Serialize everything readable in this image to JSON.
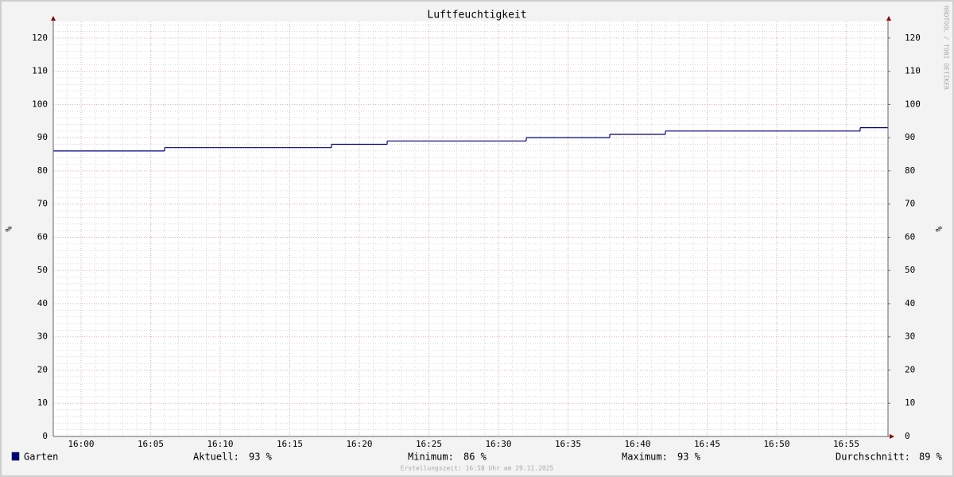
{
  "chart_data": {
    "type": "step",
    "title": "Luftfeuchtigkeit",
    "ylabel": "%",
    "y2label": "%",
    "watermark": "RRDTOOL / TOBI OETIKER",
    "x": [
      "15:58",
      "16:06",
      "16:18",
      "16:22",
      "16:32",
      "16:38",
      "16:42",
      "16:56"
    ],
    "series": [
      {
        "name": "Garten",
        "color": "#000080",
        "values": [
          86,
          87,
          88,
          89,
          90,
          91,
          92,
          93
        ]
      }
    ],
    "xlim": [
      "15:58",
      "16:58"
    ],
    "xticks": [
      "16:00",
      "16:05",
      "16:10",
      "16:15",
      "16:20",
      "16:25",
      "16:30",
      "16:35",
      "16:40",
      "16:45",
      "16:50",
      "16:55"
    ],
    "x_minor_step": 1,
    "ylim": [
      0,
      125
    ],
    "yticks": [
      0,
      10,
      20,
      30,
      40,
      50,
      60,
      70,
      80,
      90,
      100,
      110,
      120
    ],
    "y_minor_step": 2,
    "y2lim": [
      0,
      125
    ],
    "y2ticks": [
      0,
      10,
      20,
      30,
      40,
      50,
      60,
      70,
      80,
      90,
      100,
      110,
      120
    ],
    "grid": true,
    "stats": [
      {
        "label": "Aktuell:",
        "text": "93 %"
      },
      {
        "label": "Minimum:",
        "text": "86 %"
      },
      {
        "label": "Maximum:",
        "text": "93 %"
      },
      {
        "label": "Durchschnitt:",
        "text": "89 %"
      }
    ],
    "footer": "Erstellungszeit: 16:58 Uhr am 29.11.2025"
  }
}
